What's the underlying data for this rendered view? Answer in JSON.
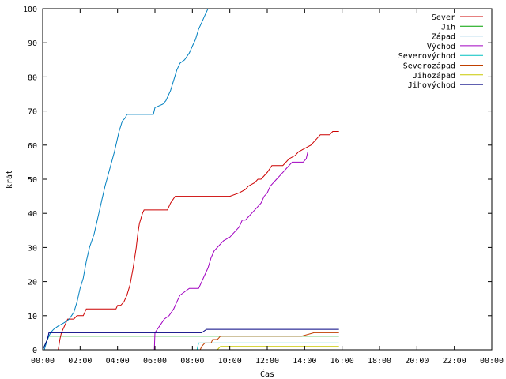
{
  "chart_data": {
    "type": "line",
    "title": "",
    "xlabel": "Čas",
    "ylabel": "krát",
    "xlim": [
      0,
      1440
    ],
    "ylim": [
      0,
      100
    ],
    "grid": false,
    "legend_position": "top-right",
    "x_ticks": [
      {
        "value": 0,
        "label": "00:00"
      },
      {
        "value": 120,
        "label": "02:00"
      },
      {
        "value": 240,
        "label": "04:00"
      },
      {
        "value": 360,
        "label": "06:00"
      },
      {
        "value": 480,
        "label": "08:00"
      },
      {
        "value": 600,
        "label": "10:00"
      },
      {
        "value": 720,
        "label": "12:00"
      },
      {
        "value": 840,
        "label": "14:00"
      },
      {
        "value": 960,
        "label": "16:00"
      },
      {
        "value": 1080,
        "label": "18:00"
      },
      {
        "value": 1200,
        "label": "20:00"
      },
      {
        "value": 1320,
        "label": "22:00"
      },
      {
        "value": 1440,
        "label": "00:00"
      }
    ],
    "y_ticks": [
      {
        "value": 0,
        "label": "0"
      },
      {
        "value": 10,
        "label": "10"
      },
      {
        "value": 20,
        "label": "20"
      },
      {
        "value": 30,
        "label": "30"
      },
      {
        "value": 40,
        "label": "40"
      },
      {
        "value": 50,
        "label": "50"
      },
      {
        "value": 60,
        "label": "60"
      },
      {
        "value": 70,
        "label": "70"
      },
      {
        "value": 80,
        "label": "80"
      },
      {
        "value": 90,
        "label": "90"
      },
      {
        "value": 100,
        "label": "100"
      }
    ],
    "series": [
      {
        "name": "Sever",
        "color": "#cc0000",
        "points": [
          [
            50,
            0
          ],
          [
            55,
            3
          ],
          [
            60,
            5
          ],
          [
            70,
            7
          ],
          [
            80,
            9
          ],
          [
            100,
            9
          ],
          [
            110,
            10
          ],
          [
            130,
            10
          ],
          [
            140,
            12
          ],
          [
            185,
            12
          ],
          [
            235,
            12
          ],
          [
            240,
            13
          ],
          [
            250,
            13
          ],
          [
            260,
            14
          ],
          [
            270,
            16
          ],
          [
            280,
            19
          ],
          [
            290,
            24
          ],
          [
            300,
            30
          ],
          [
            305,
            34
          ],
          [
            310,
            37
          ],
          [
            320,
            40
          ],
          [
            325,
            41
          ],
          [
            400,
            41
          ],
          [
            410,
            43
          ],
          [
            425,
            45
          ],
          [
            470,
            45
          ],
          [
            580,
            45
          ],
          [
            600,
            45
          ],
          [
            630,
            46
          ],
          [
            650,
            47
          ],
          [
            660,
            48
          ],
          [
            680,
            49
          ],
          [
            690,
            50
          ],
          [
            700,
            50
          ],
          [
            720,
            52
          ],
          [
            735,
            54
          ],
          [
            750,
            54
          ],
          [
            770,
            54
          ],
          [
            790,
            56
          ],
          [
            810,
            57
          ],
          [
            820,
            58
          ],
          [
            840,
            59
          ],
          [
            860,
            60
          ],
          [
            880,
            62
          ],
          [
            890,
            63
          ],
          [
            900,
            63
          ],
          [
            920,
            63
          ],
          [
            930,
            64
          ],
          [
            950,
            64
          ]
        ]
      },
      {
        "name": "Jih",
        "color": "#00a000",
        "points": [
          [
            0,
            0
          ],
          [
            10,
            2
          ],
          [
            20,
            4
          ],
          [
            950,
            4
          ]
        ]
      },
      {
        "name": "Západ",
        "color": "#0080c0",
        "points": [
          [
            5,
            0
          ],
          [
            15,
            3
          ],
          [
            25,
            5
          ],
          [
            35,
            6
          ],
          [
            50,
            7
          ],
          [
            70,
            8
          ],
          [
            85,
            9
          ],
          [
            100,
            11
          ],
          [
            110,
            14
          ],
          [
            120,
            18
          ],
          [
            130,
            21
          ],
          [
            140,
            26
          ],
          [
            150,
            30
          ],
          [
            165,
            34
          ],
          [
            180,
            40
          ],
          [
            190,
            44
          ],
          [
            200,
            48
          ],
          [
            215,
            53
          ],
          [
            230,
            58
          ],
          [
            245,
            64
          ],
          [
            255,
            67
          ],
          [
            265,
            68
          ],
          [
            270,
            69
          ],
          [
            330,
            69
          ],
          [
            355,
            69
          ],
          [
            360,
            71
          ],
          [
            385,
            72
          ],
          [
            395,
            73
          ],
          [
            410,
            76
          ],
          [
            420,
            79
          ],
          [
            430,
            82
          ],
          [
            440,
            84
          ],
          [
            455,
            85
          ],
          [
            470,
            87
          ],
          [
            480,
            89
          ],
          [
            490,
            91
          ],
          [
            500,
            94
          ],
          [
            510,
            96
          ],
          [
            520,
            98
          ],
          [
            530,
            100
          ]
        ]
      },
      {
        "name": "Východ",
        "color": "#a000c0",
        "points": [
          [
            358,
            0
          ],
          [
            360,
            5
          ],
          [
            375,
            7
          ],
          [
            390,
            9
          ],
          [
            405,
            10
          ],
          [
            420,
            12
          ],
          [
            430,
            14
          ],
          [
            440,
            16
          ],
          [
            455,
            17
          ],
          [
            470,
            18
          ],
          [
            500,
            18
          ],
          [
            510,
            20
          ],
          [
            520,
            22
          ],
          [
            530,
            24
          ],
          [
            540,
            27
          ],
          [
            550,
            29
          ],
          [
            560,
            30
          ],
          [
            570,
            31
          ],
          [
            580,
            32
          ],
          [
            600,
            33
          ],
          [
            610,
            34
          ],
          [
            620,
            35
          ],
          [
            630,
            36
          ],
          [
            640,
            38
          ],
          [
            650,
            38
          ],
          [
            660,
            39
          ],
          [
            670,
            40
          ],
          [
            680,
            41
          ],
          [
            690,
            42
          ],
          [
            700,
            43
          ],
          [
            710,
            45
          ],
          [
            720,
            46
          ],
          [
            730,
            48
          ],
          [
            740,
            49
          ],
          [
            750,
            50
          ],
          [
            760,
            51
          ],
          [
            770,
            52
          ],
          [
            780,
            53
          ],
          [
            790,
            54
          ],
          [
            800,
            55
          ],
          [
            820,
            55
          ],
          [
            835,
            55
          ],
          [
            845,
            56
          ],
          [
            850,
            58
          ]
        ]
      },
      {
        "name": "Severovýchod",
        "color": "#00c0c0",
        "points": [
          [
            495,
            0
          ],
          [
            500,
            2
          ],
          [
            950,
            2
          ]
        ]
      },
      {
        "name": "Severozápad",
        "color": "#c04000",
        "points": [
          [
            505,
            0
          ],
          [
            510,
            1
          ],
          [
            520,
            2
          ],
          [
            540,
            2
          ],
          [
            545,
            3
          ],
          [
            560,
            3
          ],
          [
            570,
            4
          ],
          [
            700,
            4
          ],
          [
            710,
            4
          ],
          [
            830,
            4
          ],
          [
            870,
            5
          ],
          [
            950,
            5
          ]
        ]
      },
      {
        "name": "Jihozápad",
        "color": "#c8c800",
        "points": [
          [
            560,
            0
          ],
          [
            570,
            1
          ],
          [
            950,
            1
          ]
        ]
      },
      {
        "name": "Jihovýchod",
        "color": "#000080",
        "points": [
          [
            0,
            0
          ],
          [
            5,
            1
          ],
          [
            15,
            3
          ],
          [
            20,
            5
          ],
          [
            50,
            5
          ],
          [
            55,
            5
          ],
          [
            510,
            5
          ],
          [
            525,
            6
          ],
          [
            950,
            6
          ]
        ]
      }
    ]
  }
}
